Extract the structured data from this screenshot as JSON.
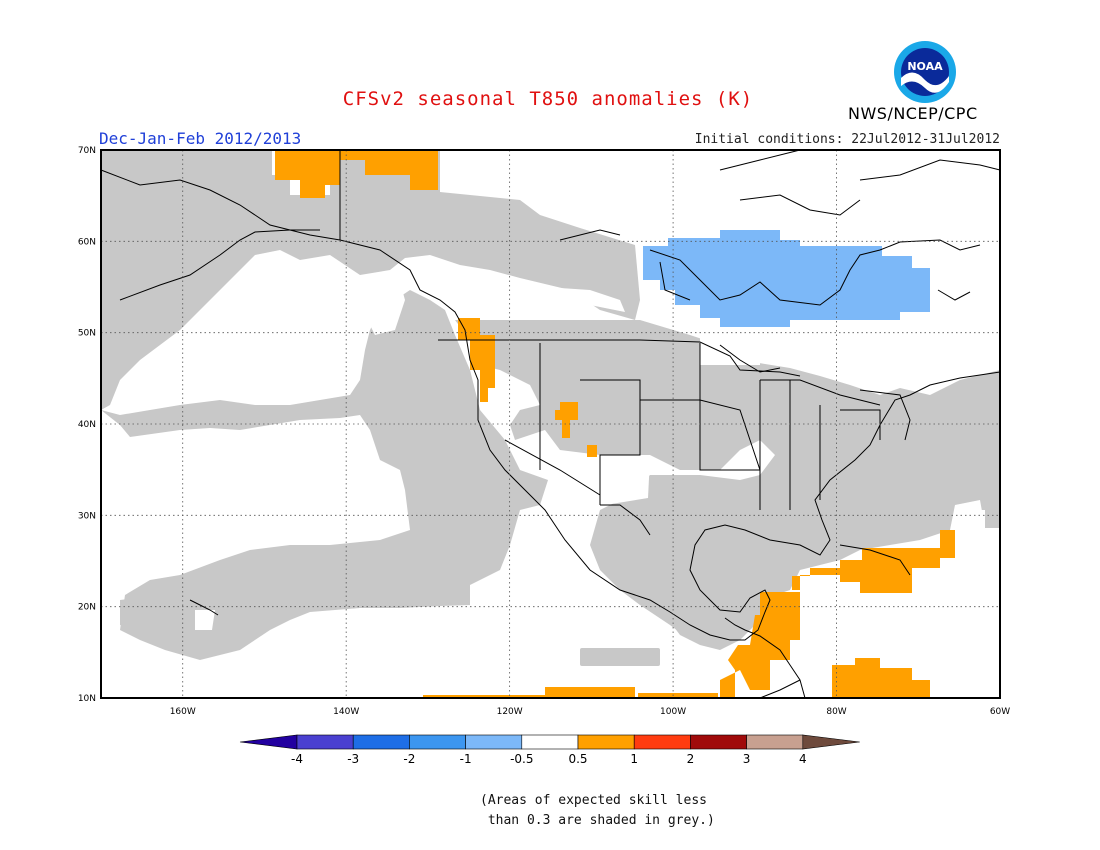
{
  "title": "CFSv2 seasonal T850 anomalies (K)",
  "period": "Dec-Jan-Feb 2012/2013",
  "initial_conditions": "Initial conditions: 22Jul2012-31Jul2012",
  "agency": "NWS/NCEP/CPC",
  "logo_text": "NOAA",
  "latitude_labels": [
    "70N",
    "60N",
    "50N",
    "40N",
    "30N",
    "20N",
    "10N"
  ],
  "longitude_labels": [
    "160W",
    "140W",
    "120W",
    "100W",
    "80W",
    "60W"
  ],
  "colorbar": {
    "labels": [
      "-4",
      "-3",
      "-2",
      "-1",
      "-0.5",
      "0.5",
      "1",
      "2",
      "3",
      "4"
    ],
    "colors": [
      "#2200a0",
      "#4a40d0",
      "#1e6ee6",
      "#3c96f0",
      "#7cb8f8",
      "#ffffff",
      "#ffa000",
      "#ff3c10",
      "#a00a0a",
      "#c8a090",
      "#6e4a3c"
    ]
  },
  "note_lines": [
    "(Areas of expected skill less",
    " than 0.3 are shaded in grey.)"
  ],
  "colors": {
    "grey_mask": "#c8c8c8",
    "warm_anomaly": "#ffa000",
    "cool_anomaly": "#7cb8f8"
  }
}
